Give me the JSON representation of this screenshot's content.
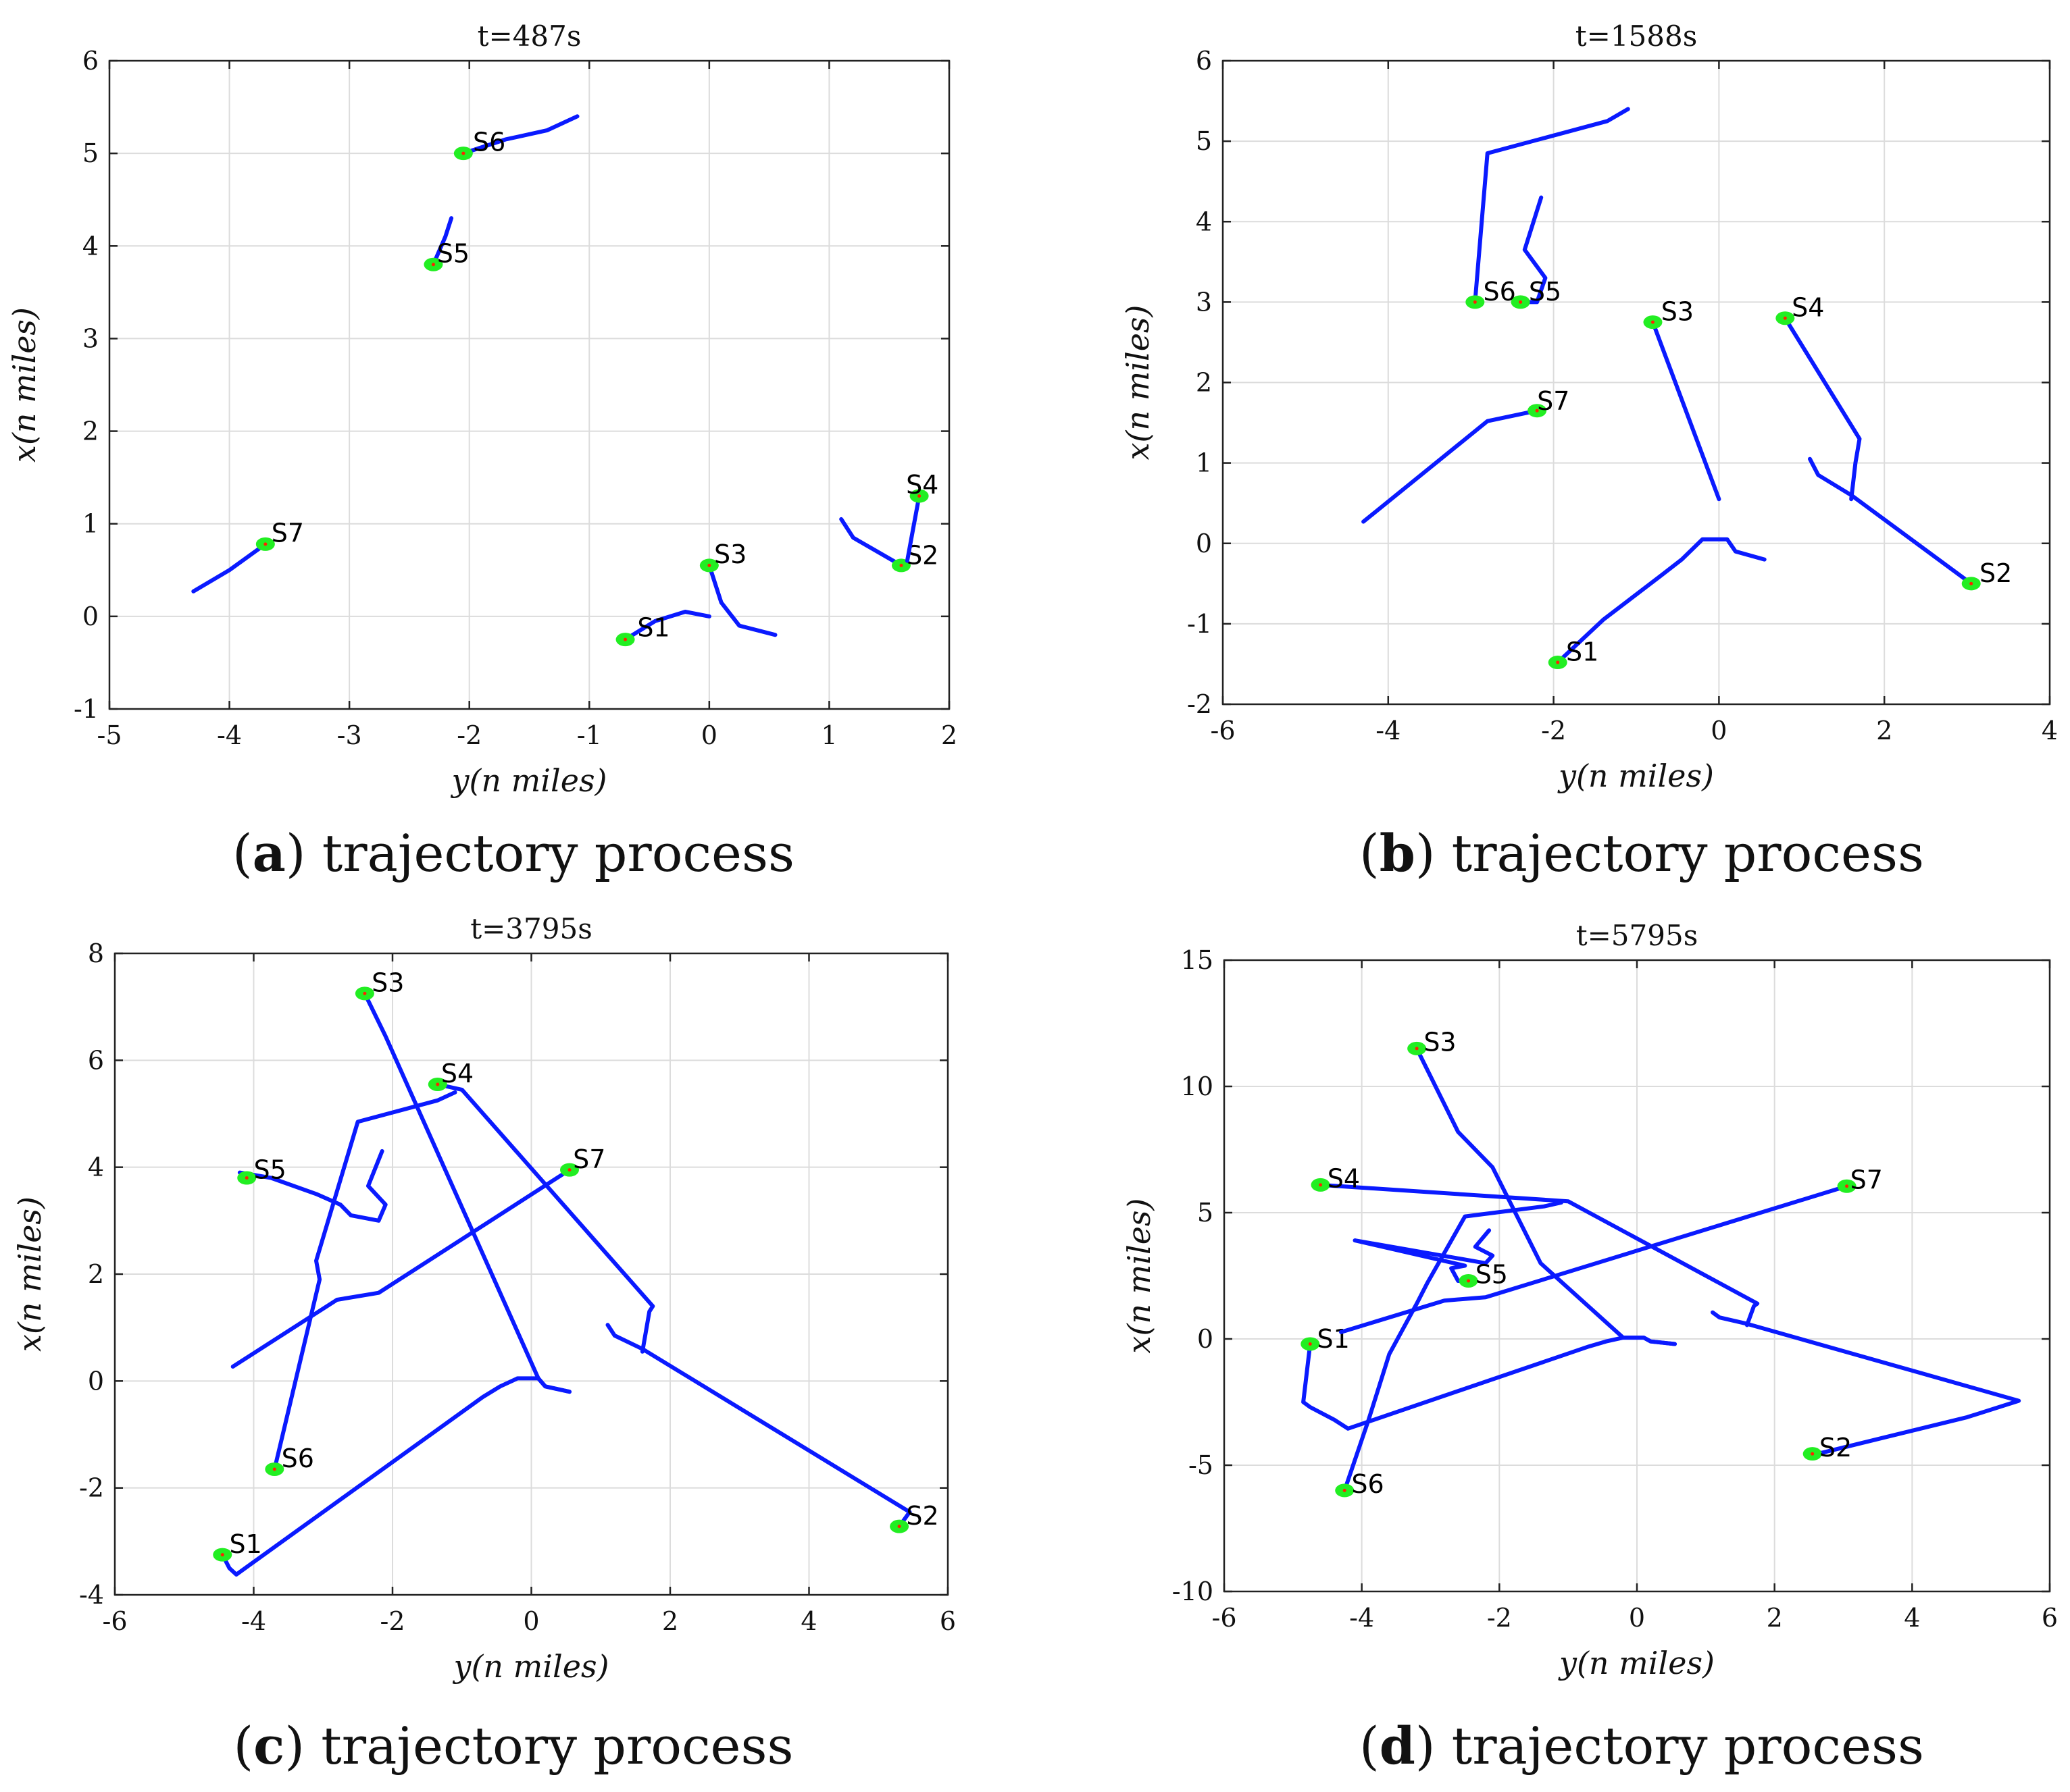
{
  "colors": {
    "trajectory": "#0a1aff",
    "marker": "#22ee22",
    "marker_center": "#ff2200"
  },
  "panels": [
    {
      "caption_letter": "a",
      "caption_text": "trajectory process",
      "chart_data": {
        "type": "line",
        "title": "t=487s",
        "xlabel": "y(n miles)",
        "ylabel": "x(n miles)",
        "xlim": [
          -5,
          2
        ],
        "ylim": [
          -1,
          6
        ],
        "xticks": [
          -5,
          -4,
          -3,
          -2,
          -1,
          0,
          1,
          2
        ],
        "yticks": [
          -1,
          0,
          1,
          2,
          3,
          4,
          5,
          6
        ],
        "grid": true,
        "series": [
          {
            "name": "S1",
            "points": [
              [
                0,
                0
              ],
              [
                -0.2,
                0.05
              ],
              [
                -0.45,
                -0.05
              ],
              [
                -0.7,
                -0.25
              ]
            ],
            "label_at": [
              -0.6,
              -0.12
            ]
          },
          {
            "name": "S2",
            "points": [
              [
                1.1,
                1.05
              ],
              [
                1.2,
                0.85
              ],
              [
                1.4,
                0.7
              ],
              [
                1.6,
                0.55
              ]
            ],
            "label_at": [
              1.64,
              0.66
            ]
          },
          {
            "name": "S3",
            "points": [
              [
                0.55,
                -0.2
              ],
              [
                0.25,
                -0.1
              ],
              [
                0.1,
                0.15
              ],
              [
                0,
                0.55
              ]
            ],
            "label_at": [
              0.04,
              0.67
            ]
          },
          {
            "name": "S4",
            "points": [
              [
                1.65,
                0.6
              ],
              [
                1.7,
                0.95
              ],
              [
                1.75,
                1.3
              ]
            ],
            "label_at": [
              1.64,
              1.42
            ]
          },
          {
            "name": "S5",
            "points": [
              [
                -2.15,
                4.3
              ],
              [
                -2.2,
                4.1
              ],
              [
                -2.3,
                3.8
              ]
            ],
            "label_at": [
              -2.27,
              3.92
            ]
          },
          {
            "name": "S6",
            "points": [
              [
                -1.1,
                5.4
              ],
              [
                -1.35,
                5.25
              ],
              [
                -1.7,
                5.15
              ],
              [
                -2.05,
                5.0
              ]
            ],
            "label_at": [
              -1.97,
              5.12
            ]
          },
          {
            "name": "S7",
            "points": [
              [
                -4.3,
                0.27
              ],
              [
                -4.0,
                0.5
              ],
              [
                -3.7,
                0.78
              ]
            ],
            "label_at": [
              -3.65,
              0.9
            ]
          }
        ]
      }
    },
    {
      "caption_letter": "b",
      "caption_text": "trajectory process",
      "chart_data": {
        "type": "line",
        "title": "t=1588s",
        "xlabel": "y(n miles)",
        "ylabel": "x(n miles)",
        "xlim": [
          -6,
          4
        ],
        "ylim": [
          -2,
          6
        ],
        "xticks": [
          -6,
          -4,
          -2,
          0,
          2,
          4
        ],
        "yticks": [
          -2,
          -1,
          0,
          1,
          2,
          3,
          4,
          5,
          6
        ],
        "grid": true,
        "series": [
          {
            "name": "S1",
            "points": [
              [
                0.55,
                -0.2
              ],
              [
                0.2,
                -0.1
              ],
              [
                0.1,
                0.05
              ],
              [
                -0.2,
                0.05
              ],
              [
                -0.45,
                -0.2
              ],
              [
                -0.7,
                -0.4
              ],
              [
                -1.4,
                -0.95
              ],
              [
                -1.95,
                -1.48
              ]
            ],
            "label_at": [
              -1.85,
              -1.35
            ]
          },
          {
            "name": "S2",
            "points": [
              [
                1.1,
                1.05
              ],
              [
                1.2,
                0.85
              ],
              [
                1.6,
                0.6
              ],
              [
                3.05,
                -0.5
              ]
            ],
            "label_at": [
              3.15,
              -0.37
            ]
          },
          {
            "name": "S3",
            "points": [
              [
                0,
                0.55
              ],
              [
                -0.2,
                1.1
              ],
              [
                -0.8,
                2.75
              ]
            ],
            "label_at": [
              -0.7,
              2.88
            ]
          },
          {
            "name": "S4",
            "points": [
              [
                1.6,
                0.55
              ],
              [
                1.65,
                1.0
              ],
              [
                1.7,
                1.3
              ],
              [
                0.8,
                2.8
              ]
            ],
            "label_at": [
              0.88,
              2.93
            ]
          },
          {
            "name": "S5",
            "points": [
              [
                -2.15,
                4.3
              ],
              [
                -2.35,
                3.65
              ],
              [
                -2.1,
                3.3
              ],
              [
                -2.2,
                3.0
              ],
              [
                -2.4,
                3.0
              ]
            ],
            "label_at": [
              -2.3,
              3.13
            ]
          },
          {
            "name": "S6",
            "points": [
              [
                -1.1,
                5.4
              ],
              [
                -1.35,
                5.25
              ],
              [
                -2.8,
                4.85
              ],
              [
                -2.95,
                3.0
              ]
            ],
            "label_at": [
              -2.85,
              3.13
            ]
          },
          {
            "name": "S7",
            "points": [
              [
                -4.3,
                0.27
              ],
              [
                -2.8,
                1.52
              ],
              [
                -2.2,
                1.65
              ]
            ],
            "label_at": [
              -2.2,
              1.77
            ]
          }
        ]
      }
    },
    {
      "caption_letter": "c",
      "caption_text": "trajectory process",
      "chart_data": {
        "type": "line",
        "title": "t=3795s",
        "xlabel": "y(n miles)",
        "ylabel": "x(n miles)",
        "xlim": [
          -6,
          6
        ],
        "ylim": [
          -4,
          8
        ],
        "xticks": [
          -6,
          -4,
          -2,
          0,
          2,
          4,
          6
        ],
        "yticks": [
          -4,
          -2,
          0,
          2,
          4,
          6,
          8
        ],
        "grid": true,
        "series": [
          {
            "name": "S1",
            "points": [
              [
                0.55,
                -0.2
              ],
              [
                0.2,
                -0.1
              ],
              [
                0.1,
                0.05
              ],
              [
                -0.2,
                0.05
              ],
              [
                -0.45,
                -0.1
              ],
              [
                -0.7,
                -0.3
              ],
              [
                -4.25,
                -3.62
              ],
              [
                -4.35,
                -3.5
              ],
              [
                -4.45,
                -3.25
              ]
            ],
            "label_at": [
              -4.35,
              -3.05
            ]
          },
          {
            "name": "S2",
            "points": [
              [
                1.1,
                1.05
              ],
              [
                1.2,
                0.85
              ],
              [
                1.6,
                0.6
              ],
              [
                5.45,
                -2.45
              ],
              [
                5.3,
                -2.72
              ]
            ],
            "label_at": [
              5.4,
              -2.52
            ]
          },
          {
            "name": "S3",
            "points": [
              [
                0.55,
                -0.2
              ],
              [
                0.2,
                -0.1
              ],
              [
                0.1,
                0.05
              ],
              [
                -2.1,
                6.45
              ],
              [
                -2.4,
                7.25
              ]
            ],
            "label_at": [
              -2.3,
              7.45
            ]
          },
          {
            "name": "S4",
            "points": [
              [
                1.6,
                0.55
              ],
              [
                1.7,
                1.3
              ],
              [
                1.75,
                1.4
              ],
              [
                -1.0,
                5.45
              ],
              [
                -1.35,
                5.55
              ]
            ],
            "label_at": [
              -1.3,
              5.75
            ]
          },
          {
            "name": "S5",
            "points": [
              [
                -2.15,
                4.3
              ],
              [
                -2.35,
                3.65
              ],
              [
                -2.1,
                3.3
              ],
              [
                -2.2,
                3.0
              ],
              [
                -2.6,
                3.1
              ],
              [
                -2.75,
                3.3
              ],
              [
                -3.1,
                3.5
              ],
              [
                -3.75,
                3.8
              ],
              [
                -4.2,
                3.9
              ],
              [
                -4.1,
                3.8
              ]
            ],
            "label_at": [
              -4.0,
              3.95
            ]
          },
          {
            "name": "S6",
            "points": [
              [
                -1.1,
                5.4
              ],
              [
                -1.35,
                5.25
              ],
              [
                -2.5,
                4.85
              ],
              [
                -3.1,
                2.25
              ],
              [
                -3.05,
                1.9
              ],
              [
                -3.7,
                -1.65
              ]
            ],
            "label_at": [
              -3.6,
              -1.45
            ]
          },
          {
            "name": "S7",
            "points": [
              [
                -4.3,
                0.27
              ],
              [
                -2.8,
                1.52
              ],
              [
                -2.2,
                1.65
              ],
              [
                0.55,
                3.95
              ]
            ],
            "label_at": [
              0.6,
              4.15
            ]
          }
        ]
      }
    },
    {
      "caption_letter": "d",
      "caption_text": "trajectory process",
      "chart_data": {
        "type": "line",
        "title": "t=5795s",
        "xlabel": "y(n miles)",
        "ylabel": "x(n miles)",
        "xlim": [
          -6,
          6
        ],
        "ylim": [
          -10,
          15
        ],
        "xticks": [
          -6,
          -4,
          -2,
          0,
          2,
          4,
          6
        ],
        "yticks": [
          -10,
          -5,
          0,
          5,
          10,
          15
        ],
        "grid": true,
        "series": [
          {
            "name": "S1",
            "points": [
              [
                0.55,
                -0.2
              ],
              [
                0.2,
                -0.1
              ],
              [
                0.1,
                0.05
              ],
              [
                -0.2,
                0.05
              ],
              [
                -0.45,
                -0.1
              ],
              [
                -0.7,
                -0.3
              ],
              [
                -4.2,
                -3.55
              ],
              [
                -4.4,
                -3.2
              ],
              [
                -4.75,
                -2.7
              ],
              [
                -4.85,
                -2.5
              ],
              [
                -4.75,
                -0.2
              ]
            ],
            "label_at": [
              -4.65,
              0.0
            ]
          },
          {
            "name": "S2",
            "points": [
              [
                1.1,
                1.05
              ],
              [
                1.2,
                0.85
              ],
              [
                1.6,
                0.6
              ],
              [
                5.55,
                -2.45
              ],
              [
                4.8,
                -3.1
              ],
              [
                2.7,
                -4.5
              ],
              [
                2.55,
                -4.55
              ]
            ],
            "label_at": [
              2.65,
              -4.3
            ]
          },
          {
            "name": "S3",
            "points": [
              [
                0.55,
                -0.2
              ],
              [
                0.2,
                -0.1
              ],
              [
                0.1,
                0.05
              ],
              [
                -0.2,
                0.05
              ],
              [
                -1.4,
                3.0
              ],
              [
                -2.1,
                6.8
              ],
              [
                -2.6,
                8.2
              ],
              [
                -3.2,
                11.5
              ]
            ],
            "label_at": [
              -3.1,
              11.75
            ]
          },
          {
            "name": "S4",
            "points": [
              [
                1.6,
                0.55
              ],
              [
                1.7,
                1.3
              ],
              [
                1.75,
                1.4
              ],
              [
                -1.0,
                5.45
              ],
              [
                -4.6,
                6.1
              ]
            ],
            "label_at": [
              -4.5,
              6.35
            ]
          },
          {
            "name": "S5",
            "points": [
              [
                -2.15,
                4.3
              ],
              [
                -2.35,
                3.65
              ],
              [
                -2.1,
                3.3
              ],
              [
                -2.2,
                3.0
              ],
              [
                -4.1,
                3.9
              ],
              [
                -2.5,
                2.9
              ],
              [
                -2.7,
                2.8
              ],
              [
                -2.6,
                2.3
              ],
              [
                -2.45,
                2.3
              ]
            ],
            "label_at": [
              -2.35,
              2.55
            ]
          },
          {
            "name": "S6",
            "points": [
              [
                -1.1,
                5.4
              ],
              [
                -1.35,
                5.25
              ],
              [
                -2.5,
                4.85
              ],
              [
                -3.05,
                2.2
              ],
              [
                -3.2,
                1.4
              ],
              [
                -3.6,
                -0.6
              ],
              [
                -3.9,
                -3.2
              ],
              [
                -4.25,
                -6.0
              ]
            ],
            "label_at": [
              -4.15,
              -5.75
            ]
          },
          {
            "name": "S7",
            "points": [
              [
                -4.3,
                0.27
              ],
              [
                -2.8,
                1.52
              ],
              [
                -2.2,
                1.65
              ],
              [
                3.05,
                6.05
              ]
            ],
            "label_at": [
              3.1,
              6.3
            ]
          }
        ]
      }
    }
  ]
}
